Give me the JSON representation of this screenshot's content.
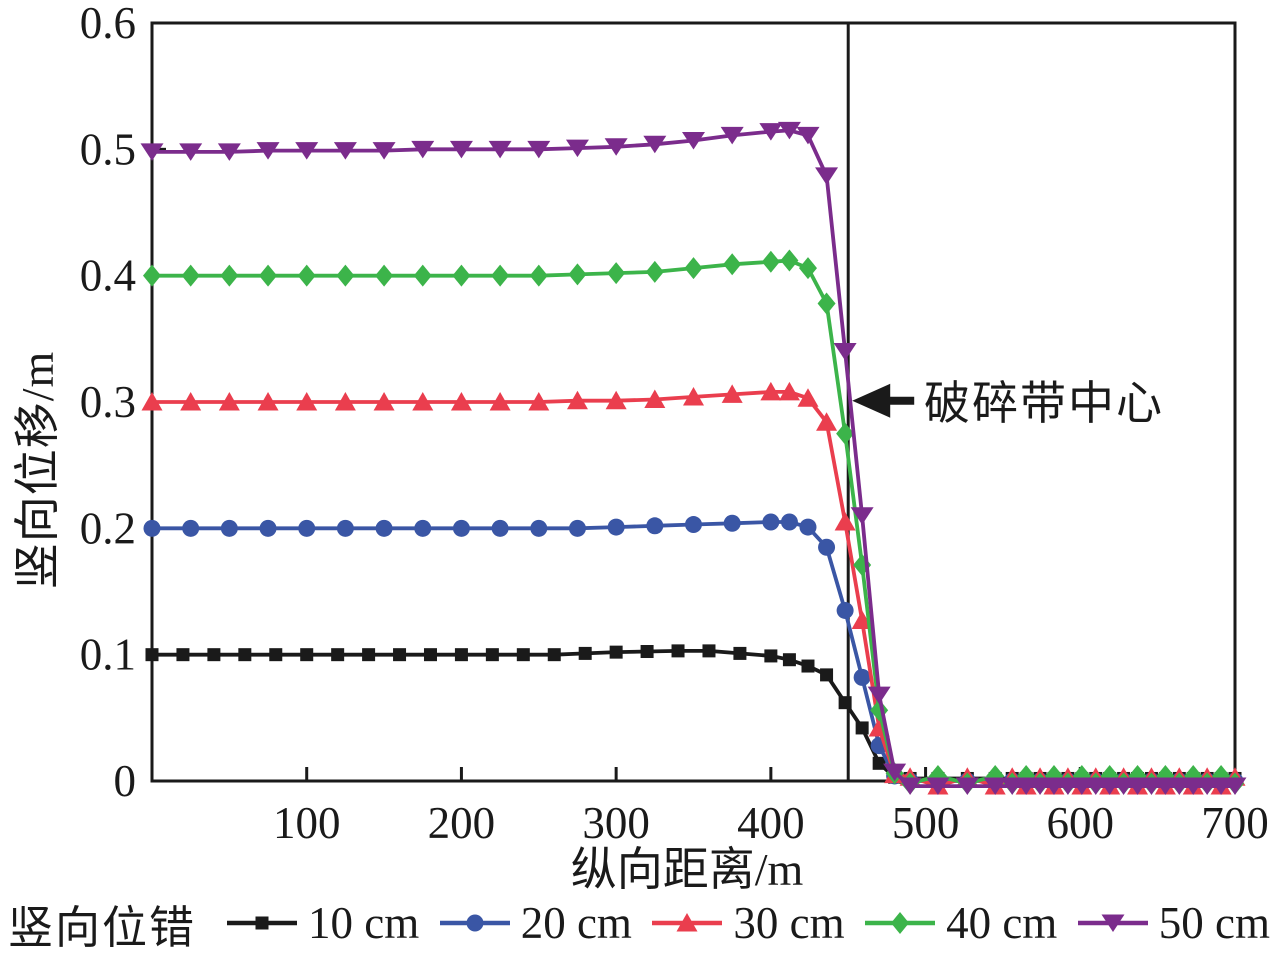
{
  "chart_data": {
    "type": "line",
    "title": "",
    "xlabel": "纵向距离/m",
    "ylabel": "竖向位移/m",
    "xlim": [
      0,
      700
    ],
    "ylim": [
      0,
      0.6
    ],
    "xticks": [
      100,
      200,
      300,
      400,
      500,
      600,
      700
    ],
    "yticks": [
      0,
      0.1,
      0.2,
      0.3,
      0.4,
      0.5,
      0.6
    ],
    "ytick_labels": [
      "0",
      "0.1",
      "0.2",
      "0.3",
      "0.4",
      "0.5",
      "0.6"
    ],
    "grid": false,
    "frame": true,
    "axis_color": "#1a1a1a",
    "legend_title": "竖向位错",
    "legend_position": "bottom",
    "vline": {
      "x": 450,
      "color": "#1a1a1a"
    },
    "annotation": {
      "text": "破碎带中心",
      "arrow_tip_x": 450,
      "arrow_tip_y": 0.301,
      "color": "#1a1a1a"
    },
    "series": [
      {
        "name": "10 cm",
        "color": "#1a1a1a",
        "marker": "square",
        "points": [
          [
            0,
            0.1
          ],
          [
            20,
            0.1
          ],
          [
            40,
            0.1
          ],
          [
            60,
            0.1
          ],
          [
            80,
            0.1
          ],
          [
            100,
            0.1
          ],
          [
            120,
            0.1
          ],
          [
            140,
            0.1
          ],
          [
            160,
            0.1
          ],
          [
            180,
            0.1
          ],
          [
            200,
            0.1
          ],
          [
            220,
            0.1
          ],
          [
            240,
            0.1
          ],
          [
            260,
            0.1
          ],
          [
            280,
            0.101
          ],
          [
            300,
            0.102
          ],
          [
            320,
            0.1025
          ],
          [
            340,
            0.103
          ],
          [
            360,
            0.103
          ],
          [
            380,
            0.101
          ],
          [
            400,
            0.099
          ],
          [
            412,
            0.096
          ],
          [
            424,
            0.091
          ],
          [
            436,
            0.084
          ],
          [
            448,
            0.062
          ],
          [
            459,
            0.042
          ],
          [
            470,
            0.014
          ],
          [
            480,
            0.003
          ],
          [
            490,
            0.002
          ],
          [
            508,
            0.002
          ],
          [
            527,
            0.002
          ],
          [
            545,
            0.002
          ],
          [
            556,
            0.002
          ],
          [
            565,
            0.002
          ],
          [
            574,
            0.002
          ],
          [
            583,
            0.002
          ],
          [
            592,
            0.002
          ],
          [
            601,
            0.002
          ],
          [
            610,
            0.002
          ],
          [
            619,
            0.002
          ],
          [
            628,
            0.002
          ],
          [
            637,
            0.002
          ],
          [
            646,
            0.002
          ],
          [
            655,
            0.002
          ],
          [
            664,
            0.002
          ],
          [
            673,
            0.002
          ],
          [
            682,
            0.002
          ],
          [
            691,
            0.002
          ],
          [
            700,
            0.002
          ]
        ]
      },
      {
        "name": "20 cm",
        "color": "#3a56a5",
        "marker": "circle",
        "points": [
          [
            0,
            0.2
          ],
          [
            25,
            0.2
          ],
          [
            50,
            0.2
          ],
          [
            75,
            0.2
          ],
          [
            100,
            0.2
          ],
          [
            125,
            0.2
          ],
          [
            150,
            0.2
          ],
          [
            175,
            0.2
          ],
          [
            200,
            0.2
          ],
          [
            225,
            0.2
          ],
          [
            250,
            0.2
          ],
          [
            275,
            0.2
          ],
          [
            300,
            0.201
          ],
          [
            325,
            0.202
          ],
          [
            350,
            0.203
          ],
          [
            375,
            0.204
          ],
          [
            400,
            0.205
          ],
          [
            412,
            0.205
          ],
          [
            424,
            0.201
          ],
          [
            436,
            0.185
          ],
          [
            448,
            0.135
          ],
          [
            459,
            0.082
          ],
          [
            470,
            0.028
          ],
          [
            480,
            0.004
          ],
          [
            490,
            0
          ],
          [
            508,
            0
          ],
          [
            527,
            0
          ],
          [
            545,
            0
          ],
          [
            556,
            0
          ],
          [
            565,
            0
          ],
          [
            574,
            0
          ],
          [
            583,
            0
          ],
          [
            592,
            0
          ],
          [
            601,
            0
          ],
          [
            610,
            0
          ],
          [
            619,
            0
          ],
          [
            628,
            0
          ],
          [
            637,
            0
          ],
          [
            646,
            0
          ],
          [
            655,
            0
          ],
          [
            664,
            0
          ],
          [
            673,
            0
          ],
          [
            682,
            0
          ],
          [
            691,
            0
          ],
          [
            700,
            0
          ]
        ]
      },
      {
        "name": "30 cm",
        "color": "#ea3e4e",
        "marker": "triangle-up",
        "points": [
          [
            0,
            0.3
          ],
          [
            25,
            0.3
          ],
          [
            50,
            0.3
          ],
          [
            75,
            0.3
          ],
          [
            100,
            0.3
          ],
          [
            125,
            0.3
          ],
          [
            150,
            0.3
          ],
          [
            175,
            0.3
          ],
          [
            200,
            0.3
          ],
          [
            225,
            0.3
          ],
          [
            250,
            0.3
          ],
          [
            275,
            0.301
          ],
          [
            300,
            0.301
          ],
          [
            325,
            0.302
          ],
          [
            350,
            0.304
          ],
          [
            375,
            0.306
          ],
          [
            400,
            0.308
          ],
          [
            412,
            0.308
          ],
          [
            424,
            0.303
          ],
          [
            436,
            0.284
          ],
          [
            448,
            0.205
          ],
          [
            459,
            0.127
          ],
          [
            470,
            0.042
          ],
          [
            480,
            0.005
          ],
          [
            490,
            0.003
          ],
          [
            508,
            -0.004
          ],
          [
            527,
            0.003
          ],
          [
            545,
            -0.004
          ],
          [
            556,
            0.003
          ],
          [
            565,
            -0.004
          ],
          [
            574,
            0.003
          ],
          [
            583,
            -0.004
          ],
          [
            592,
            0.003
          ],
          [
            601,
            -0.004
          ],
          [
            610,
            0.003
          ],
          [
            619,
            -0.004
          ],
          [
            628,
            0.003
          ],
          [
            637,
            -0.004
          ],
          [
            646,
            0.003
          ],
          [
            655,
            -0.004
          ],
          [
            664,
            0.003
          ],
          [
            673,
            -0.004
          ],
          [
            682,
            0.003
          ],
          [
            691,
            -0.004
          ],
          [
            700,
            0.003
          ]
        ]
      },
      {
        "name": "40 cm",
        "color": "#3cb44a",
        "marker": "diamond",
        "points": [
          [
            0,
            0.4
          ],
          [
            25,
            0.4
          ],
          [
            50,
            0.4
          ],
          [
            75,
            0.4
          ],
          [
            100,
            0.4
          ],
          [
            125,
            0.4
          ],
          [
            150,
            0.4
          ],
          [
            175,
            0.4
          ],
          [
            200,
            0.4
          ],
          [
            225,
            0.4
          ],
          [
            250,
            0.4
          ],
          [
            275,
            0.401
          ],
          [
            300,
            0.402
          ],
          [
            325,
            0.403
          ],
          [
            350,
            0.406
          ],
          [
            375,
            0.409
          ],
          [
            400,
            0.411
          ],
          [
            412,
            0.412
          ],
          [
            424,
            0.406
          ],
          [
            436,
            0.378
          ],
          [
            448,
            0.275
          ],
          [
            459,
            0.171
          ],
          [
            470,
            0.056
          ],
          [
            480,
            0.006
          ],
          [
            490,
            -0.002
          ],
          [
            508,
            0.004
          ],
          [
            527,
            -0.002
          ],
          [
            545,
            0.004
          ],
          [
            556,
            -0.002
          ],
          [
            565,
            0.004
          ],
          [
            574,
            -0.002
          ],
          [
            583,
            0.004
          ],
          [
            592,
            -0.002
          ],
          [
            601,
            0.004
          ],
          [
            610,
            -0.002
          ],
          [
            619,
            0.004
          ],
          [
            628,
            -0.002
          ],
          [
            637,
            0.004
          ],
          [
            646,
            -0.002
          ],
          [
            655,
            0.004
          ],
          [
            664,
            -0.002
          ],
          [
            673,
            0.004
          ],
          [
            682,
            -0.002
          ],
          [
            691,
            0.004
          ],
          [
            700,
            -0.002
          ]
        ]
      },
      {
        "name": "50 cm",
        "color": "#7b2c8c",
        "marker": "triangle-down",
        "points": [
          [
            0,
            0.498
          ],
          [
            25,
            0.498
          ],
          [
            50,
            0.498
          ],
          [
            75,
            0.499
          ],
          [
            100,
            0.499
          ],
          [
            125,
            0.499
          ],
          [
            150,
            0.499
          ],
          [
            175,
            0.5
          ],
          [
            200,
            0.5
          ],
          [
            225,
            0.5
          ],
          [
            250,
            0.5
          ],
          [
            275,
            0.501
          ],
          [
            300,
            0.502
          ],
          [
            325,
            0.504
          ],
          [
            350,
            0.507
          ],
          [
            375,
            0.511
          ],
          [
            400,
            0.514
          ],
          [
            412,
            0.515
          ],
          [
            424,
            0.511
          ],
          [
            436,
            0.479
          ],
          [
            448,
            0.34
          ],
          [
            459,
            0.21
          ],
          [
            470,
            0.068
          ],
          [
            480,
            0.007
          ],
          [
            490,
            -0.004
          ],
          [
            508,
            -0.004
          ],
          [
            527,
            -0.004
          ],
          [
            545,
            -0.004
          ],
          [
            556,
            -0.004
          ],
          [
            565,
            -0.004
          ],
          [
            574,
            -0.004
          ],
          [
            583,
            -0.004
          ],
          [
            592,
            -0.004
          ],
          [
            601,
            -0.004
          ],
          [
            610,
            -0.004
          ],
          [
            619,
            -0.004
          ],
          [
            628,
            -0.004
          ],
          [
            637,
            -0.004
          ],
          [
            646,
            -0.004
          ],
          [
            655,
            -0.004
          ],
          [
            664,
            -0.004
          ],
          [
            673,
            -0.004
          ],
          [
            682,
            -0.004
          ],
          [
            691,
            -0.004
          ],
          [
            700,
            -0.004
          ]
        ]
      }
    ]
  }
}
